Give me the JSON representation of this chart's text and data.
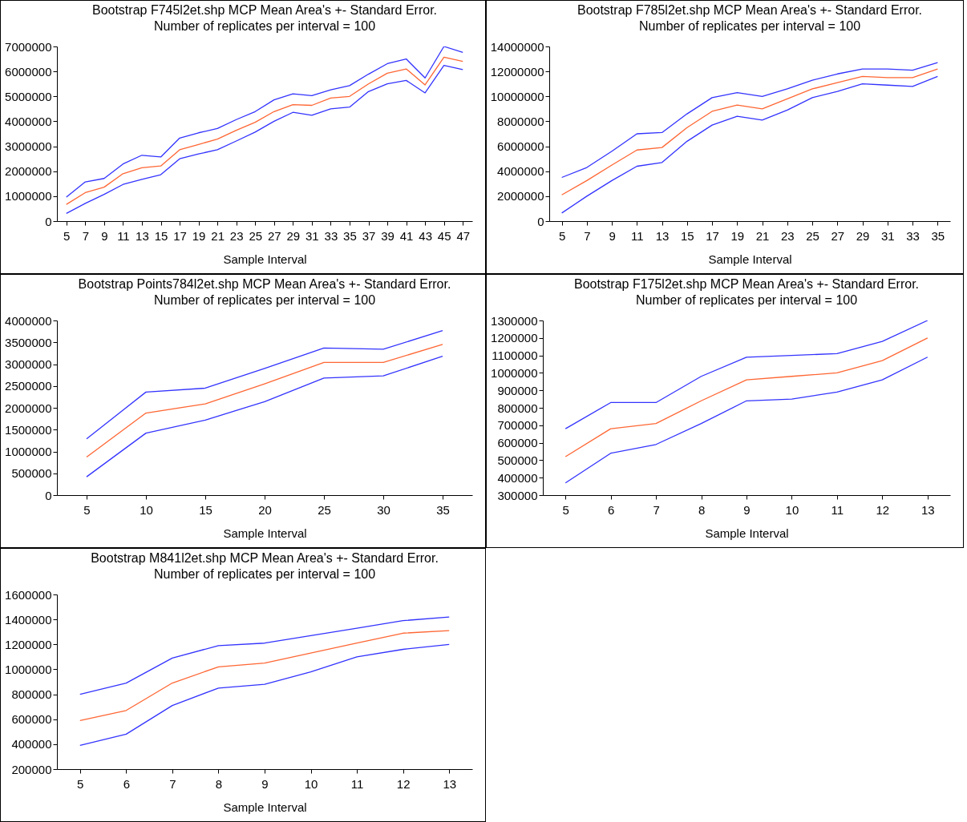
{
  "chart_data": [
    {
      "type": "line",
      "title": "Bootstrap F745l2et.shp  MCP Mean Area's +- Standard Error.",
      "subtitle": "Number of replicates per interval = 100",
      "xlabel": "Sample Interval",
      "categories": [
        "5",
        "7",
        "9",
        "11",
        "13",
        "15",
        "17",
        "19",
        "21",
        "23",
        "25",
        "27",
        "29",
        "31",
        "33",
        "35",
        "37",
        "39",
        "41",
        "43",
        "45",
        "47"
      ],
      "ylim": [
        0,
        7000000
      ],
      "yticks": [
        0,
        1000000,
        2000000,
        3000000,
        4000000,
        5000000,
        6000000,
        7000000
      ],
      "grid": false,
      "legend": false,
      "series": [
        {
          "color": "#3333ff",
          "values": [
            960000,
            1570000,
            1710000,
            2290000,
            2640000,
            2570000,
            3330000,
            3540000,
            3710000,
            4070000,
            4390000,
            4860000,
            5100000,
            5030000,
            5260000,
            5430000,
            5890000,
            6310000,
            6500000,
            5740000,
            7000000,
            6760000
          ]
        },
        {
          "color": "#ff6633",
          "values": [
            670000,
            1140000,
            1360000,
            1900000,
            2140000,
            2210000,
            2860000,
            3070000,
            3290000,
            3640000,
            3960000,
            4390000,
            4670000,
            4640000,
            4930000,
            5000000,
            5500000,
            5930000,
            6100000,
            5460000,
            6570000,
            6400000
          ]
        },
        {
          "color": "#3333ff",
          "values": [
            310000,
            710000,
            1070000,
            1470000,
            1670000,
            1860000,
            2500000,
            2690000,
            2860000,
            3210000,
            3570000,
            4000000,
            4360000,
            4240000,
            4500000,
            4570000,
            5190000,
            5500000,
            5640000,
            5140000,
            6240000,
            6070000
          ]
        }
      ]
    },
    {
      "type": "line",
      "title": "Bootstrap F785l2et.shp  MCP Mean Area's +- Standard Error.",
      "subtitle": "Number of replicates per interval = 100",
      "xlabel": "Sample Interval",
      "categories": [
        "5",
        "7",
        "9",
        "11",
        "13",
        "15",
        "17",
        "19",
        "21",
        "23",
        "25",
        "27",
        "29",
        "31",
        "33",
        "35"
      ],
      "ylim": [
        0,
        14000000
      ],
      "yticks": [
        0,
        2000000,
        4000000,
        6000000,
        8000000,
        10000000,
        12000000,
        14000000
      ],
      "grid": false,
      "legend": false,
      "series": [
        {
          "color": "#3333ff",
          "values": [
            3500000,
            4300000,
            5600000,
            7000000,
            7100000,
            8600000,
            9900000,
            10300000,
            10000000,
            10600000,
            11300000,
            11800000,
            12200000,
            12200000,
            12100000,
            12700000
          ]
        },
        {
          "color": "#ff6633",
          "values": [
            2100000,
            3250000,
            4500000,
            5700000,
            5900000,
            7500000,
            8800000,
            9300000,
            9000000,
            9800000,
            10600000,
            11100000,
            11600000,
            11500000,
            11500000,
            12200000
          ]
        },
        {
          "color": "#3333ff",
          "values": [
            650000,
            2000000,
            3250000,
            4400000,
            4700000,
            6400000,
            7700000,
            8400000,
            8100000,
            8900000,
            9900000,
            10400000,
            11000000,
            10900000,
            10800000,
            11600000
          ]
        }
      ]
    },
    {
      "type": "line",
      "title": "Bootstrap Points784l2et.shp  MCP Mean Area's +- Standard Error.",
      "subtitle": "Number of replicates per interval = 100",
      "xlabel": "Sample Interval",
      "categories": [
        "5",
        "10",
        "15",
        "20",
        "25",
        "30",
        "35"
      ],
      "ylim": [
        0,
        4000000
      ],
      "yticks": [
        0,
        500000,
        1000000,
        1500000,
        2000000,
        2500000,
        3000000,
        3500000,
        4000000
      ],
      "grid": false,
      "legend": false,
      "series": [
        {
          "color": "#3333ff",
          "values": [
            1290000,
            2360000,
            2450000,
            2900000,
            3370000,
            3340000,
            3770000
          ]
        },
        {
          "color": "#ff6633",
          "values": [
            870000,
            1880000,
            2090000,
            2550000,
            3040000,
            3040000,
            3450000
          ]
        },
        {
          "color": "#3333ff",
          "values": [
            420000,
            1420000,
            1720000,
            2140000,
            2680000,
            2730000,
            3180000
          ]
        }
      ]
    },
    {
      "type": "line",
      "title": "Bootstrap F175l2et.shp  MCP Mean Area's +- Standard Error.",
      "subtitle": "Number of replicates per interval = 100",
      "xlabel": "Sample Interval",
      "categories": [
        "5",
        "6",
        "7",
        "8",
        "9",
        "10",
        "11",
        "12",
        "13"
      ],
      "ylim": [
        300000,
        1300000
      ],
      "yticks": [
        300000,
        400000,
        500000,
        600000,
        700000,
        800000,
        900000,
        1000000,
        1100000,
        1200000,
        1300000
      ],
      "grid": false,
      "legend": false,
      "series": [
        {
          "color": "#3333ff",
          "values": [
            680000,
            830000,
            830000,
            980000,
            1090000,
            1100000,
            1110000,
            1180000,
            1300000
          ]
        },
        {
          "color": "#ff6633",
          "values": [
            520000,
            680000,
            710000,
            840000,
            960000,
            980000,
            1000000,
            1070000,
            1200000
          ]
        },
        {
          "color": "#3333ff",
          "values": [
            370000,
            540000,
            590000,
            710000,
            840000,
            850000,
            890000,
            960000,
            1090000
          ]
        }
      ]
    },
    {
      "type": "line",
      "title": "Bootstrap M841l2et.shp  MCP Mean Area's +- Standard Error.",
      "subtitle": "Number of replicates per interval = 100",
      "xlabel": "Sample Interval",
      "categories": [
        "5",
        "6",
        "7",
        "8",
        "9",
        "10",
        "11",
        "12",
        "13"
      ],
      "ylim": [
        200000,
        1600000
      ],
      "yticks": [
        200000,
        400000,
        600000,
        800000,
        1000000,
        1200000,
        1400000,
        1600000
      ],
      "grid": false,
      "legend": false,
      "series": [
        {
          "color": "#3333ff",
          "values": [
            800000,
            890000,
            1090000,
            1190000,
            1210000,
            1270000,
            1330000,
            1390000,
            1420000
          ]
        },
        {
          "color": "#ff6633",
          "values": [
            590000,
            670000,
            890000,
            1020000,
            1050000,
            1130000,
            1210000,
            1290000,
            1310000
          ]
        },
        {
          "color": "#3333ff",
          "values": [
            390000,
            480000,
            710000,
            850000,
            880000,
            980000,
            1100000,
            1160000,
            1200000
          ]
        }
      ]
    }
  ]
}
